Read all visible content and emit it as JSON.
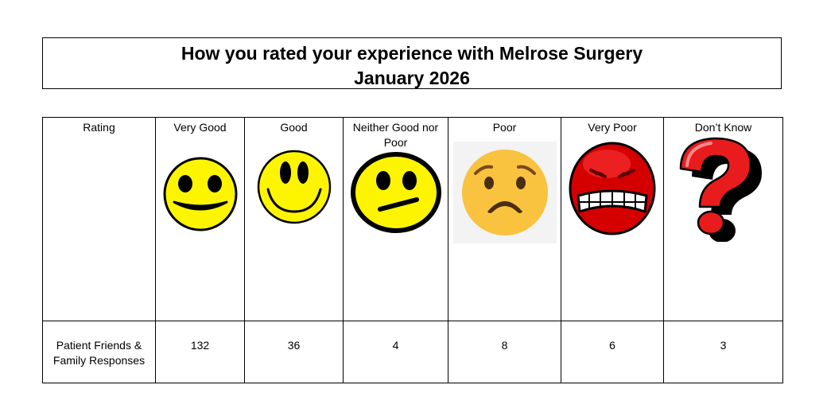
{
  "title": {
    "line1": "How you rated your experience with Melrose Surgery",
    "line2": "January 2026"
  },
  "table": {
    "label_header": "Rating",
    "row_label": "Patient Friends & Family Responses",
    "columns": [
      {
        "label": "Very Good",
        "count": "132",
        "icon": "laughing-smiley-icon"
      },
      {
        "label": "Good",
        "count": "36",
        "icon": "smiley-icon"
      },
      {
        "label": "Neither Good nor Poor",
        "count": "4",
        "icon": "neutral-face-icon"
      },
      {
        "label": "Poor",
        "count": "8",
        "icon": "worried-face-icon"
      },
      {
        "label": "Very Poor",
        "count": "6",
        "icon": "angry-face-icon"
      },
      {
        "label": "Don’t Know",
        "count": "3",
        "icon": "question-mark-icon"
      }
    ]
  },
  "colors": {
    "smiley_yellow": "#fdf500",
    "worried_orange": "#f9c33f",
    "angry_red": "#d40000",
    "question_red": "#e81c1c"
  }
}
